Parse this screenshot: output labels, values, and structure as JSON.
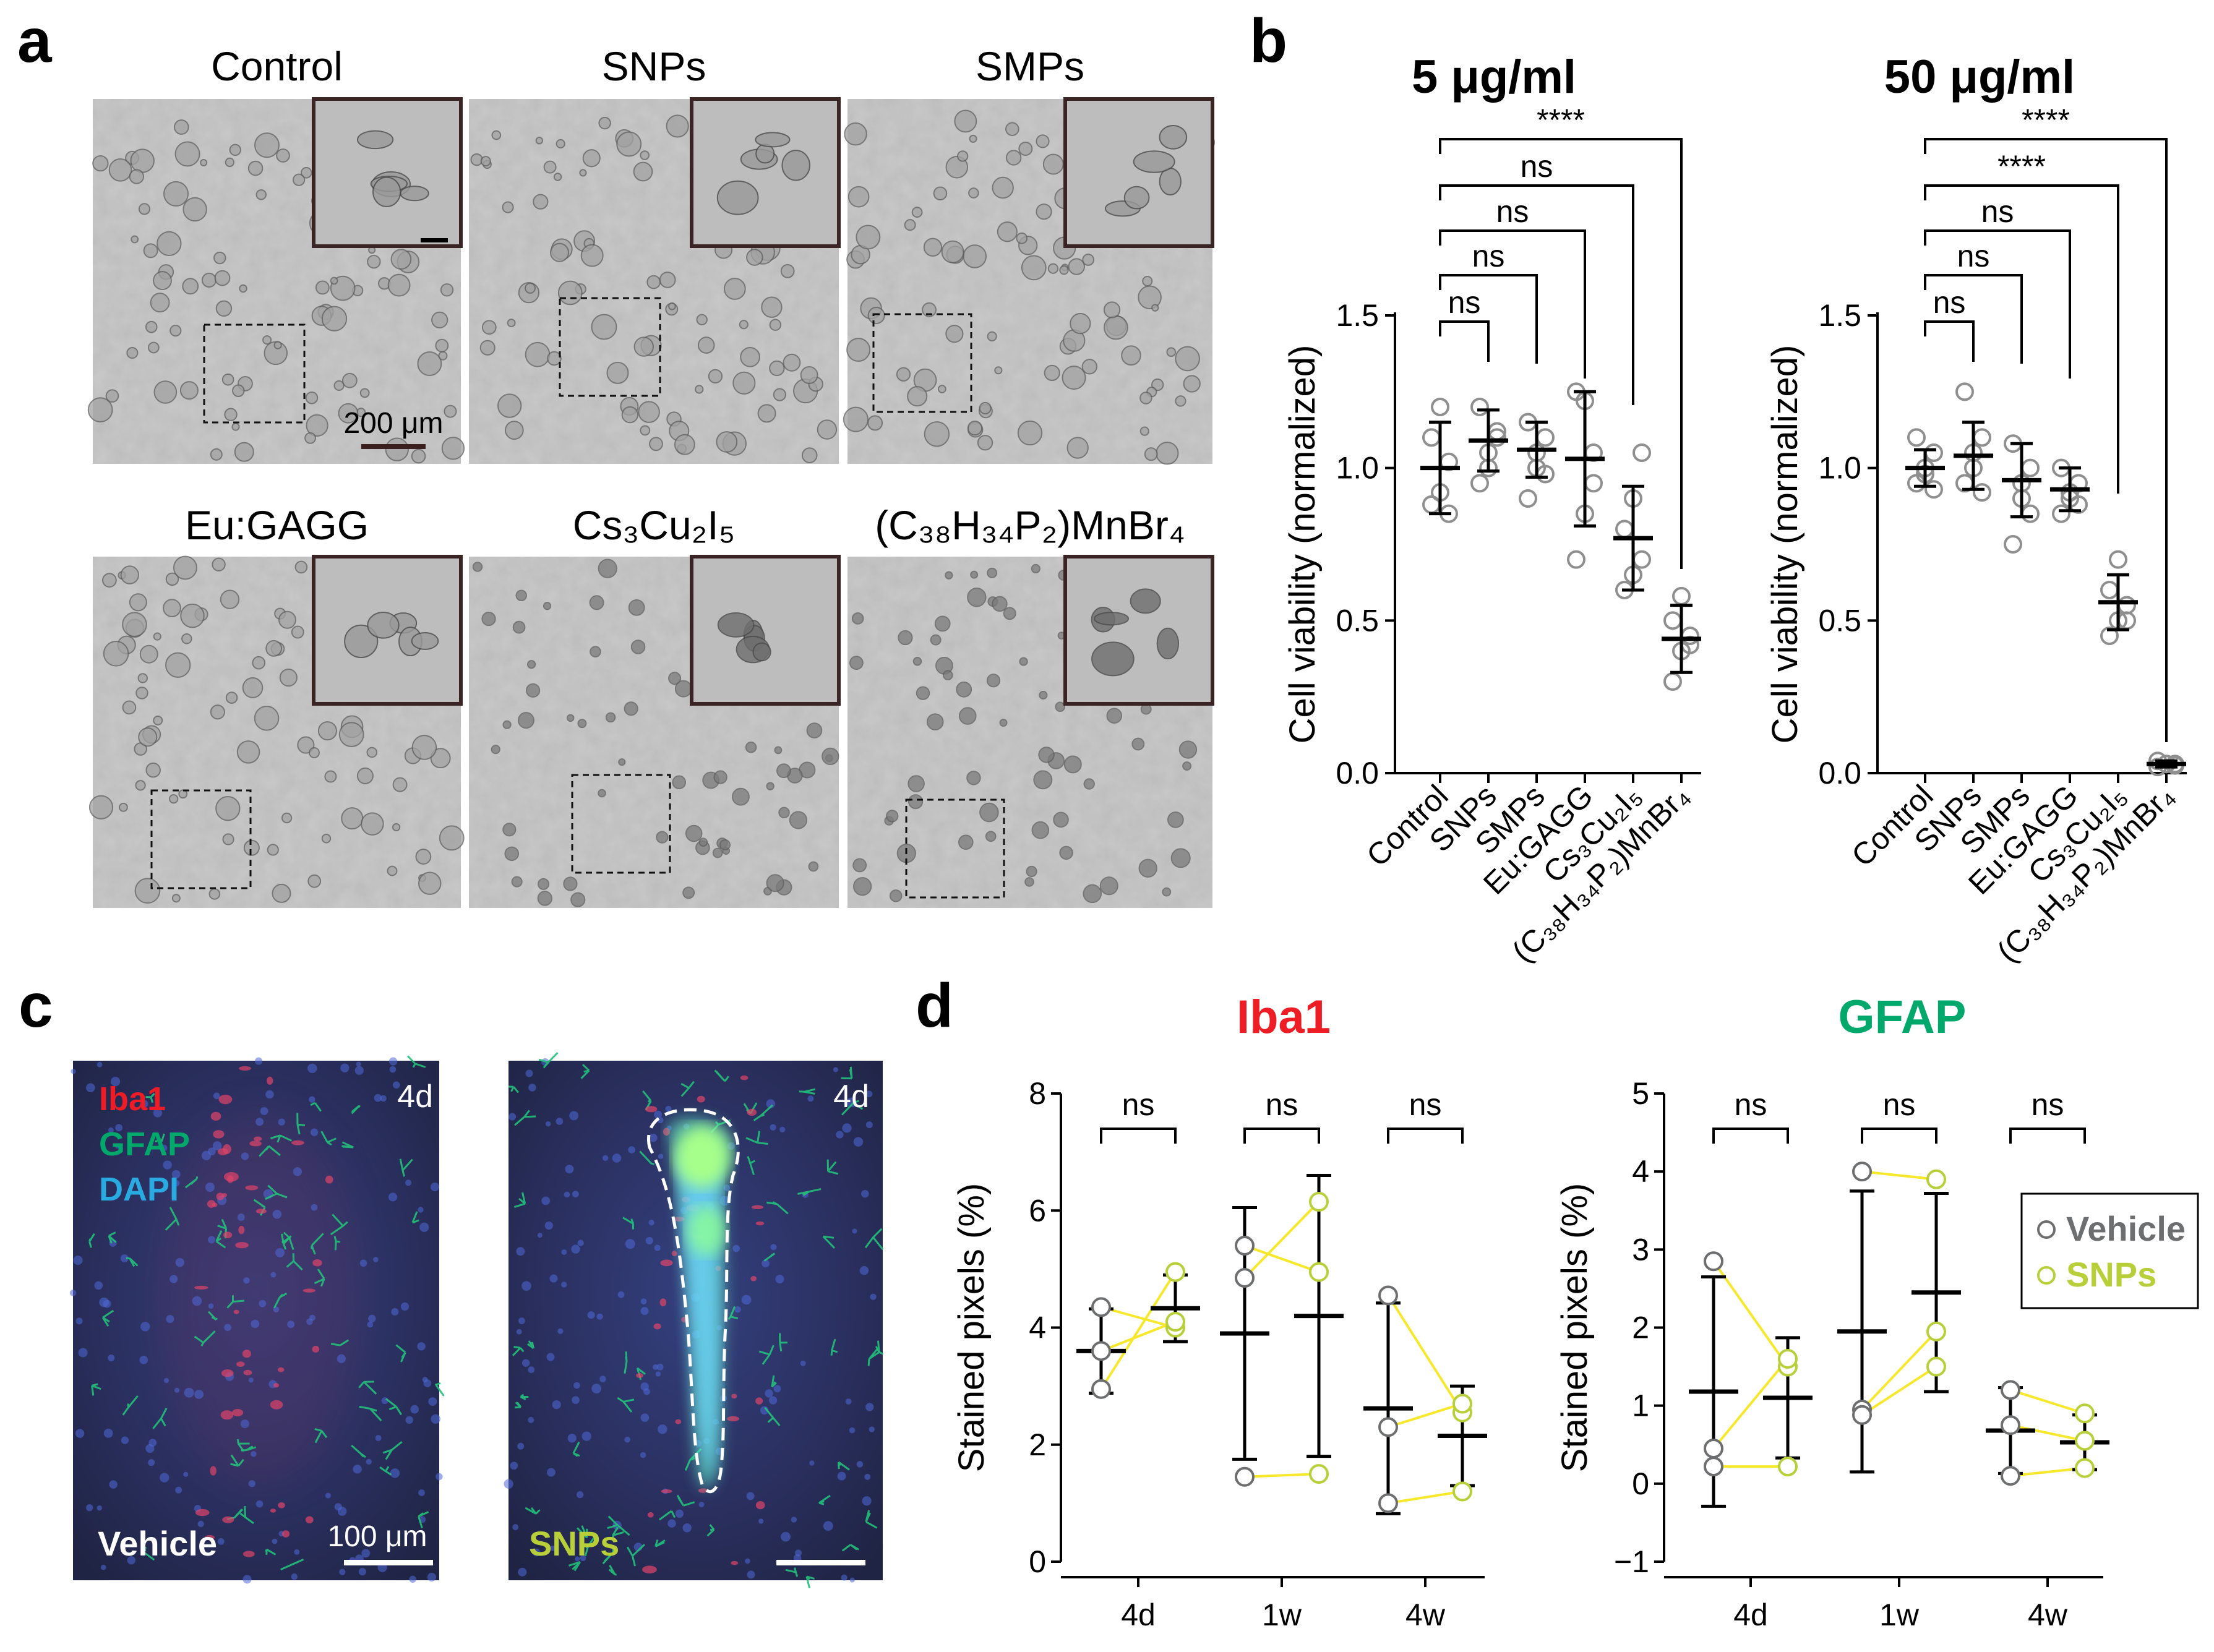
{
  "panel_labels": {
    "a": "a",
    "b": "b",
    "c": "c",
    "d": "d"
  },
  "panel_a": {
    "conditions": [
      "Control",
      "SNPs",
      "SMPs",
      "Eu:GAGG",
      "Cs₃Cu₂I₅",
      "(C₃₈H₃₄P₂)MnBr₄"
    ],
    "scale_bar_label": "200 μm"
  },
  "panel_c": {
    "legend": {
      "iba1": "Iba1",
      "gfap": "GFAP",
      "dapi": "DAPI"
    },
    "left_time": "4d",
    "right_time": "4d",
    "left_group": "Vehicle",
    "right_group": "SNPs",
    "scale_bar_label": "100 μm"
  },
  "colors": {
    "iba1_red": "#ee1c25",
    "gfap_green": "#00a86b",
    "dapi_blue": "#29abe2",
    "snps_yellow": "#f7e82b",
    "snps_label": "#b9cf3a",
    "vehicle_gray": "#6d6e70",
    "point_gray": "#8f8f8f"
  },
  "chart_data": [
    {
      "type": "scatter",
      "title": "5 μg/ml",
      "ylabel": "Cell viability (normalized)",
      "ylim": [
        0.0,
        1.5
      ],
      "yticks": [
        "0.0",
        "0.5",
        "1.0",
        "1.5"
      ],
      "categories": [
        "Control",
        "SNPs",
        "SMPs",
        "Eu:GAGG",
        "Cs₃Cu₂I₅",
        "(C₃₈H₃₄P₂)MnBr₄"
      ],
      "points": [
        [
          0.88,
          0.92,
          1.02,
          1.1,
          1.2,
          0.85
        ],
        [
          0.95,
          1.05,
          1.12,
          1.2,
          1.0,
          1.1
        ],
        [
          0.9,
          1.0,
          1.1,
          1.15,
          1.05,
          0.98
        ],
        [
          0.7,
          0.85,
          1.05,
          1.25,
          1.22,
          0.95
        ],
        [
          0.6,
          0.65,
          0.7,
          0.8,
          0.9,
          1.05
        ],
        [
          0.3,
          0.4,
          0.45,
          0.5,
          0.58,
          0.42
        ]
      ],
      "mean": [
        1.0,
        1.09,
        1.06,
        1.03,
        0.77,
        0.44
      ],
      "sd": [
        0.15,
        0.1,
        0.09,
        0.22,
        0.17,
        0.11
      ],
      "comparisons": [
        {
          "to": "SNPs",
          "label": "ns"
        },
        {
          "to": "SMPs",
          "label": "ns"
        },
        {
          "to": "Eu:GAGG",
          "label": "ns"
        },
        {
          "to": "Cs₃Cu₂I₅",
          "label": "ns"
        },
        {
          "to": "(C₃₈H₃₄P₂)MnBr₄",
          "label": "****"
        }
      ]
    },
    {
      "type": "scatter",
      "title": "50 μg/ml",
      "ylabel": "Cell viability (normalized)",
      "ylim": [
        0.0,
        1.5
      ],
      "yticks": [
        "0.0",
        "0.5",
        "1.0",
        "1.5"
      ],
      "categories": [
        "Control",
        "SNPs",
        "SMPs",
        "Eu:GAGG",
        "Cs₃Cu₂I₅",
        "(C₃₈H₃₄P₂)MnBr₄"
      ],
      "points": [
        [
          0.95,
          1.0,
          1.05,
          1.1,
          0.98,
          0.93
        ],
        [
          0.95,
          1.0,
          1.1,
          1.25,
          1.05,
          0.92
        ],
        [
          0.75,
          0.9,
          1.0,
          1.08,
          0.95,
          0.85
        ],
        [
          0.85,
          0.9,
          0.95,
          1.0,
          0.92,
          0.88
        ],
        [
          0.45,
          0.5,
          0.55,
          0.6,
          0.7,
          0.5
        ],
        [
          0.02,
          0.03,
          0.03,
          0.04,
          0.03,
          0.025
        ]
      ],
      "mean": [
        1.0,
        1.04,
        0.96,
        0.93,
        0.56,
        0.03
      ],
      "sd": [
        0.06,
        0.11,
        0.12,
        0.07,
        0.09,
        0.01
      ],
      "comparisons": [
        {
          "to": "SNPs",
          "label": "ns"
        },
        {
          "to": "SMPs",
          "label": "ns"
        },
        {
          "to": "Eu:GAGG",
          "label": "ns"
        },
        {
          "to": "Cs₃Cu₂I₅",
          "label": "****"
        },
        {
          "to": "(C₃₈H₃₄P₂)MnBr₄",
          "label": "****"
        }
      ]
    },
    {
      "type": "scatter",
      "title": "Iba1",
      "ylabel": "Stained pixels (%)",
      "ylim": [
        0,
        8
      ],
      "yticks": [
        "0",
        "2",
        "4",
        "6",
        "8"
      ],
      "categories": [
        "4d",
        "1w",
        "4w"
      ],
      "vehicle": [
        [
          4.35,
          3.6,
          2.95
        ],
        [
          5.4,
          4.85,
          1.45
        ],
        [
          4.55,
          2.3,
          1.0
        ]
      ],
      "snps": [
        [
          4.0,
          4.1,
          4.95
        ],
        [
          4.95,
          6.15,
          1.5
        ],
        [
          2.55,
          2.7,
          1.2
        ]
      ],
      "vehicle_mean": [
        3.6,
        3.9,
        2.62
      ],
      "vehicle_sd": [
        0.72,
        2.15,
        1.8
      ],
      "snps_mean": [
        4.33,
        4.2,
        2.15
      ],
      "snps_sd": [
        0.57,
        2.4,
        0.85
      ],
      "significance": [
        "ns",
        "ns",
        "ns"
      ]
    },
    {
      "type": "scatter",
      "title": "GFAP",
      "ylabel": "Stained pixels (%)",
      "ylim": [
        -1,
        5
      ],
      "yticks": [
        "−1",
        "0",
        "1",
        "2",
        "3",
        "4",
        "5"
      ],
      "categories": [
        "4d",
        "1w",
        "4w"
      ],
      "vehicle": [
        [
          2.85,
          0.45,
          0.22
        ],
        [
          4.0,
          0.95,
          0.88
        ],
        [
          1.2,
          0.75,
          0.1
        ]
      ],
      "snps": [
        [
          1.5,
          1.6,
          0.22
        ],
        [
          3.9,
          1.95,
          1.5
        ],
        [
          0.9,
          0.55,
          0.2
        ]
      ],
      "vehicle_mean": [
        1.18,
        1.95,
        0.68
      ],
      "vehicle_sd": [
        1.47,
        1.8,
        0.55
      ],
      "snps_mean": [
        1.1,
        2.45,
        0.53
      ],
      "snps_sd": [
        0.77,
        1.27,
        0.35
      ],
      "significance": [
        "ns",
        "ns",
        "ns"
      ],
      "legend": [
        "Vehicle",
        "SNPs"
      ]
    }
  ]
}
